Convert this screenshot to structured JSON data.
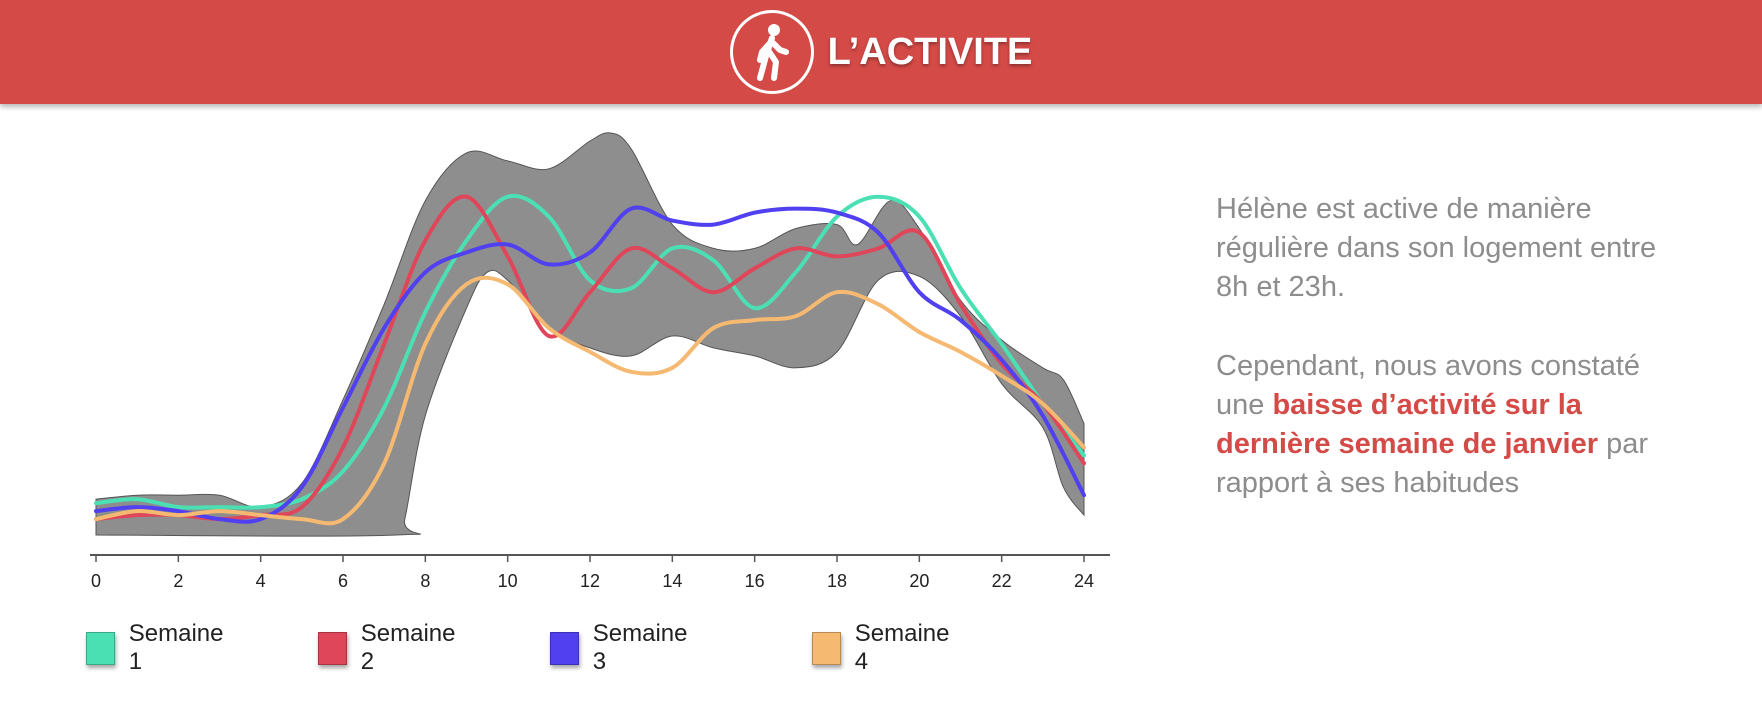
{
  "header": {
    "title": "L’ACTIVITE",
    "icon": "walking-person-icon",
    "background_color": "#d44a47"
  },
  "text": {
    "paragraph1": "Hélène est active de manière régulière dans son logement entre 8h et 23h.",
    "paragraph2_before": "Cependant, nous avons constaté une ",
    "paragraph2_highlight": "baisse d’activité sur la dernière semaine de janvier",
    "paragraph2_after": " par rapport à ses habitudes",
    "highlight_color": "#d44a47"
  },
  "chart_data": {
    "type": "line",
    "title": "",
    "xlabel": "",
    "ylabel": "",
    "xlim": [
      0,
      24
    ],
    "ylim": [
      0,
      100
    ],
    "x_ticks": [
      "0",
      "2",
      "4",
      "6",
      "8",
      "10",
      "12",
      "14",
      "16",
      "18",
      "20",
      "22",
      "24"
    ],
    "grid": false,
    "legend_position": "bottom",
    "band": {
      "color": "#8e8e8e",
      "upper": [
        [
          0,
          9
        ],
        [
          1,
          10
        ],
        [
          2,
          10
        ],
        [
          3,
          10
        ],
        [
          4,
          7
        ],
        [
          5,
          13
        ],
        [
          6,
          34
        ],
        [
          7,
          58
        ],
        [
          8,
          84
        ],
        [
          9,
          96
        ],
        [
          10,
          94
        ],
        [
          11,
          92
        ],
        [
          12,
          99
        ],
        [
          12.5,
          101
        ],
        [
          13,
          97
        ],
        [
          14,
          78
        ],
        [
          15,
          72
        ],
        [
          16,
          72
        ],
        [
          17,
          77
        ],
        [
          18,
          78
        ],
        [
          18.5,
          73
        ],
        [
          19.3,
          84
        ],
        [
          20,
          77
        ],
        [
          21,
          59
        ],
        [
          22,
          49
        ],
        [
          23,
          42
        ],
        [
          23.5,
          39
        ],
        [
          24,
          28
        ]
      ],
      "lower": [
        [
          0,
          0
        ],
        [
          7.3,
          0
        ],
        [
          7.5,
          4
        ],
        [
          8,
          30
        ],
        [
          9,
          57
        ],
        [
          9.5,
          66
        ],
        [
          10,
          64
        ],
        [
          11,
          52
        ],
        [
          12,
          47
        ],
        [
          13,
          45
        ],
        [
          14,
          50
        ],
        [
          15,
          47
        ],
        [
          16,
          45
        ],
        [
          17,
          42
        ],
        [
          18,
          46
        ],
        [
          19,
          64
        ],
        [
          20,
          65
        ],
        [
          21,
          55
        ],
        [
          22,
          38
        ],
        [
          23,
          27
        ],
        [
          23.5,
          12
        ],
        [
          24,
          5
        ]
      ]
    },
    "series": [
      {
        "name": "Semaine 1",
        "color": "#4be0b4",
        "points": [
          [
            0,
            8
          ],
          [
            1,
            9
          ],
          [
            2,
            7
          ],
          [
            3,
            7
          ],
          [
            4,
            7
          ],
          [
            5,
            9
          ],
          [
            6,
            16
          ],
          [
            7,
            32
          ],
          [
            8,
            56
          ],
          [
            9,
            74
          ],
          [
            10,
            85
          ],
          [
            11,
            80
          ],
          [
            12,
            64
          ],
          [
            13,
            62
          ],
          [
            14,
            72
          ],
          [
            15,
            69
          ],
          [
            16,
            57
          ],
          [
            17,
            66
          ],
          [
            18,
            80
          ],
          [
            19,
            85
          ],
          [
            20,
            80
          ],
          [
            21,
            62
          ],
          [
            22,
            48
          ],
          [
            23,
            33
          ],
          [
            24,
            20
          ]
        ]
      },
      {
        "name": "Semaine 2",
        "color": "#e0465a",
        "points": [
          [
            0,
            4
          ],
          [
            1,
            5
          ],
          [
            2,
            5
          ],
          [
            3,
            4
          ],
          [
            4,
            5
          ],
          [
            5,
            7
          ],
          [
            6,
            22
          ],
          [
            7,
            48
          ],
          [
            8,
            74
          ],
          [
            9,
            85
          ],
          [
            10,
            70
          ],
          [
            11,
            50
          ],
          [
            12,
            61
          ],
          [
            13,
            72
          ],
          [
            14,
            67
          ],
          [
            15,
            61
          ],
          [
            16,
            67
          ],
          [
            17,
            72
          ],
          [
            18,
            70
          ],
          [
            19,
            72
          ],
          [
            20,
            76
          ],
          [
            21,
            58
          ],
          [
            22,
            43
          ],
          [
            23,
            33
          ],
          [
            24,
            18
          ]
        ]
      },
      {
        "name": "Semaine 3",
        "color": "#5040f0",
        "points": [
          [
            0,
            6
          ],
          [
            1,
            7
          ],
          [
            2,
            6
          ],
          [
            3,
            4
          ],
          [
            4,
            4
          ],
          [
            5,
            12
          ],
          [
            6,
            32
          ],
          [
            7,
            52
          ],
          [
            8,
            66
          ],
          [
            9,
            71
          ],
          [
            10,
            73
          ],
          [
            11,
            68
          ],
          [
            12,
            71
          ],
          [
            13,
            82
          ],
          [
            14,
            79
          ],
          [
            15,
            78
          ],
          [
            16,
            81
          ],
          [
            17,
            82
          ],
          [
            18,
            81
          ],
          [
            19,
            76
          ],
          [
            20,
            61
          ],
          [
            21,
            54
          ],
          [
            22,
            44
          ],
          [
            23,
            30
          ],
          [
            24,
            10
          ]
        ]
      },
      {
        "name": "Semaine 4",
        "color": "#f5b971",
        "points": [
          [
            0,
            4
          ],
          [
            1,
            6
          ],
          [
            2,
            5
          ],
          [
            3,
            6
          ],
          [
            4,
            5
          ],
          [
            5,
            4
          ],
          [
            6,
            4
          ],
          [
            7,
            18
          ],
          [
            8,
            48
          ],
          [
            9,
            63
          ],
          [
            10,
            63
          ],
          [
            11,
            52
          ],
          [
            12,
            46
          ],
          [
            13,
            41
          ],
          [
            14,
            42
          ],
          [
            15,
            52
          ],
          [
            16,
            54
          ],
          [
            17,
            55
          ],
          [
            18,
            61
          ],
          [
            19,
            58
          ],
          [
            20,
            51
          ],
          [
            21,
            46
          ],
          [
            22,
            40
          ],
          [
            23,
            33
          ],
          [
            24,
            22
          ]
        ]
      }
    ]
  }
}
